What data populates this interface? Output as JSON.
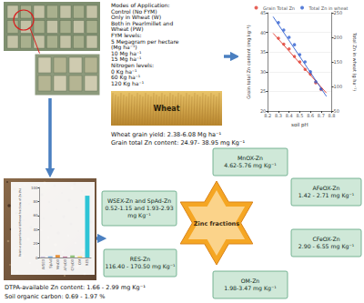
{
  "diagram": {
    "treatments": [
      "Modes of Application:",
      "Control (No FYM)",
      "Only in Wheat (W)",
      "Both in Pearlmillet and",
      "Wheat (PW)",
      "FYM levels:",
      "5 Megagram per hectare",
      "(Mg ha⁻¹)",
      "10 Mg ha⁻¹",
      "15 Mg ha⁻¹",
      "Nitrogen levels:",
      "0 Kg ha⁻¹",
      "60 Kg ha⁻¹",
      "120 Kg ha⁻¹"
    ],
    "crop_label": "Wheat",
    "wheat_results": [
      "Wheat grain yield: 2.38-6.08 Mg ha⁻¹",
      "Grain total Zn content: 24.97- 38.95 mg Kg⁻¹"
    ],
    "soil_results": [
      "DTPA-available Zn content: 1.66 - 2.99 mg Kg⁻¹",
      "Soil organic carbon: 0.69 - 1.97 %"
    ],
    "center": "Zinc fractions",
    "fractions": [
      {
        "lines": [
          "MnOX-Zn",
          "4.62-5.76 mg Kg⁻¹"
        ]
      },
      {
        "lines": [
          "AFeOX-Zn",
          "1.42 - 2.71 mg Kg⁻¹"
        ]
      },
      {
        "lines": [
          "WSEX-Zn and SpAd-Zn",
          "0.52-1.15 and 1.93-2.93",
          "mg Kg⁻¹"
        ]
      },
      {
        "lines": [
          "CFeOX-Zn",
          "2.90 - 6.55 mg Kg⁻¹"
        ]
      },
      {
        "lines": [
          "RES-Zn",
          "116.40 - 170.50 mg Kg⁻¹"
        ]
      },
      {
        "lines": [
          "OM-Zn",
          "1.98-3.47 mg Kg⁻¹"
        ]
      }
    ]
  },
  "chart_data": [
    {
      "type": "scatter",
      "x_label": "soil pH",
      "y_label": "Grain total Zn content (mg kg⁻¹)",
      "y2_label": "Total Zn in wheat (g ha⁻¹)",
      "series": [
        {
          "name": "Grain Total Zn",
          "color": "#e03c31",
          "marker": "circle",
          "x": [
            8.3,
            8.35,
            8.4,
            8.45,
            8.5,
            8.55,
            8.6,
            8.65,
            8.7
          ],
          "values": [
            38.5,
            37.0,
            35.8,
            33.9,
            32.5,
            30.6,
            29.4,
            27.2,
            25.5
          ],
          "trend": {
            "x": [
              8.25,
              8.75
            ],
            "values": [
              39.8,
              24.6
            ]
          }
        },
        {
          "name": "Total Zn in wheat",
          "color": "#2f5fd0",
          "marker": "circle",
          "axis": "y2",
          "x": [
            8.3,
            8.35,
            8.4,
            8.45,
            8.5,
            8.55,
            8.6,
            8.65,
            8.7
          ],
          "values": [
            230,
            215,
            200,
            185,
            165,
            150,
            130,
            110,
            95
          ],
          "trend": {
            "x": [
              8.25,
              8.75
            ],
            "values": [
              242,
              80
            ]
          }
        }
      ],
      "xlim": [
        8.2,
        8.8
      ],
      "xticks": [
        8.2,
        8.3,
        8.4,
        8.5,
        8.6,
        8.7,
        8.8
      ],
      "ylim": [
        20,
        45
      ],
      "yticks": [
        20,
        25,
        30,
        35,
        40,
        45
      ],
      "y2lim": [
        50,
        250
      ],
      "y2ticks": [
        50,
        100,
        150,
        200,
        250
      ],
      "legend": "top",
      "grid": true
    },
    {
      "type": "bar",
      "y_label": "Relative proportion of different fractions of Zn (%)",
      "categories": [
        "WSEX",
        "SpAd",
        "MnOX",
        "AFeOX",
        "CFeOX",
        "OM",
        "RES"
      ],
      "values": [
        0.6,
        1.6,
        3.5,
        1.4,
        3.0,
        1.7,
        88.2
      ],
      "colors": [
        "#8e7cc3",
        "#6fa8dc",
        "#e69138",
        "#c27ba0",
        "#93c47d",
        "#ffd966",
        "#2ec4d6"
      ],
      "ylim": [
        0,
        100
      ],
      "yticks": [
        0,
        20,
        40,
        60,
        80,
        100
      ],
      "grid": false
    }
  ]
}
